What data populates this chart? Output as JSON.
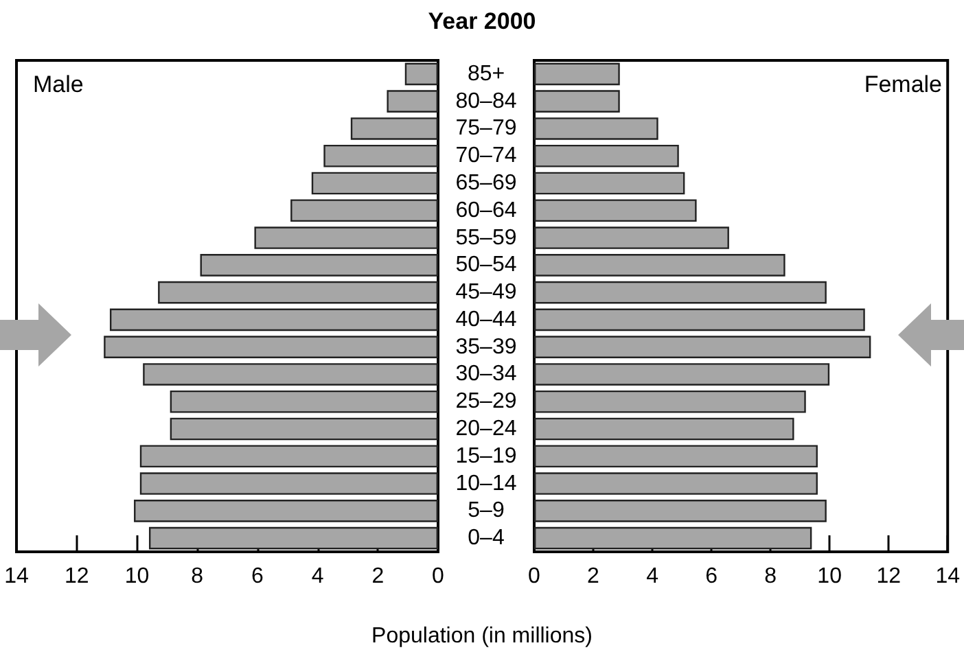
{
  "chart_data": [
    {
      "type": "bar",
      "orientation": "horizontal",
      "title": "Year 2000",
      "xlabel": "Population (in millions)",
      "categories": [
        "85+",
        "80–84",
        "75–79",
        "70–74",
        "65–69",
        "60–64",
        "55–59",
        "50–54",
        "45–49",
        "40–44",
        "35–39",
        "30–34",
        "25–29",
        "20–24",
        "15–19",
        "10–14",
        "5–9",
        "0–4"
      ],
      "series": [
        {
          "name": "Male",
          "color": "#a6a6a6",
          "values": [
            1.1,
            1.7,
            2.9,
            3.8,
            4.2,
            4.9,
            6.1,
            7.9,
            9.3,
            10.9,
            11.1,
            9.8,
            8.9,
            8.9,
            9.9,
            9.9,
            10.1,
            9.6
          ]
        }
      ],
      "xlim": [
        14,
        0
      ],
      "xticks": [
        14,
        12,
        10,
        8,
        6,
        4,
        2,
        0
      ],
      "legend": "top left",
      "grid": false
    },
    {
      "type": "bar",
      "orientation": "horizontal",
      "categories": [
        null,
        null,
        null,
        null,
        null,
        null,
        null,
        null,
        null,
        null,
        null,
        null,
        null,
        null,
        null,
        null,
        null,
        null
      ],
      "series": [
        {
          "name": "Female",
          "color": "#a6a6a6",
          "values": [
            2.9,
            2.9,
            4.2,
            4.9,
            5.1,
            5.5,
            6.6,
            8.5,
            9.9,
            11.2,
            11.4,
            10.0,
            9.2,
            8.8,
            9.6,
            9.6,
            9.9,
            9.4
          ]
        }
      ],
      "xlim": [
        0,
        14
      ],
      "xticks": [
        0,
        2,
        4,
        6,
        8,
        10,
        12,
        14
      ],
      "legend": "top right",
      "grid": false,
      "tick_labels": "x"
    }
  ]
}
